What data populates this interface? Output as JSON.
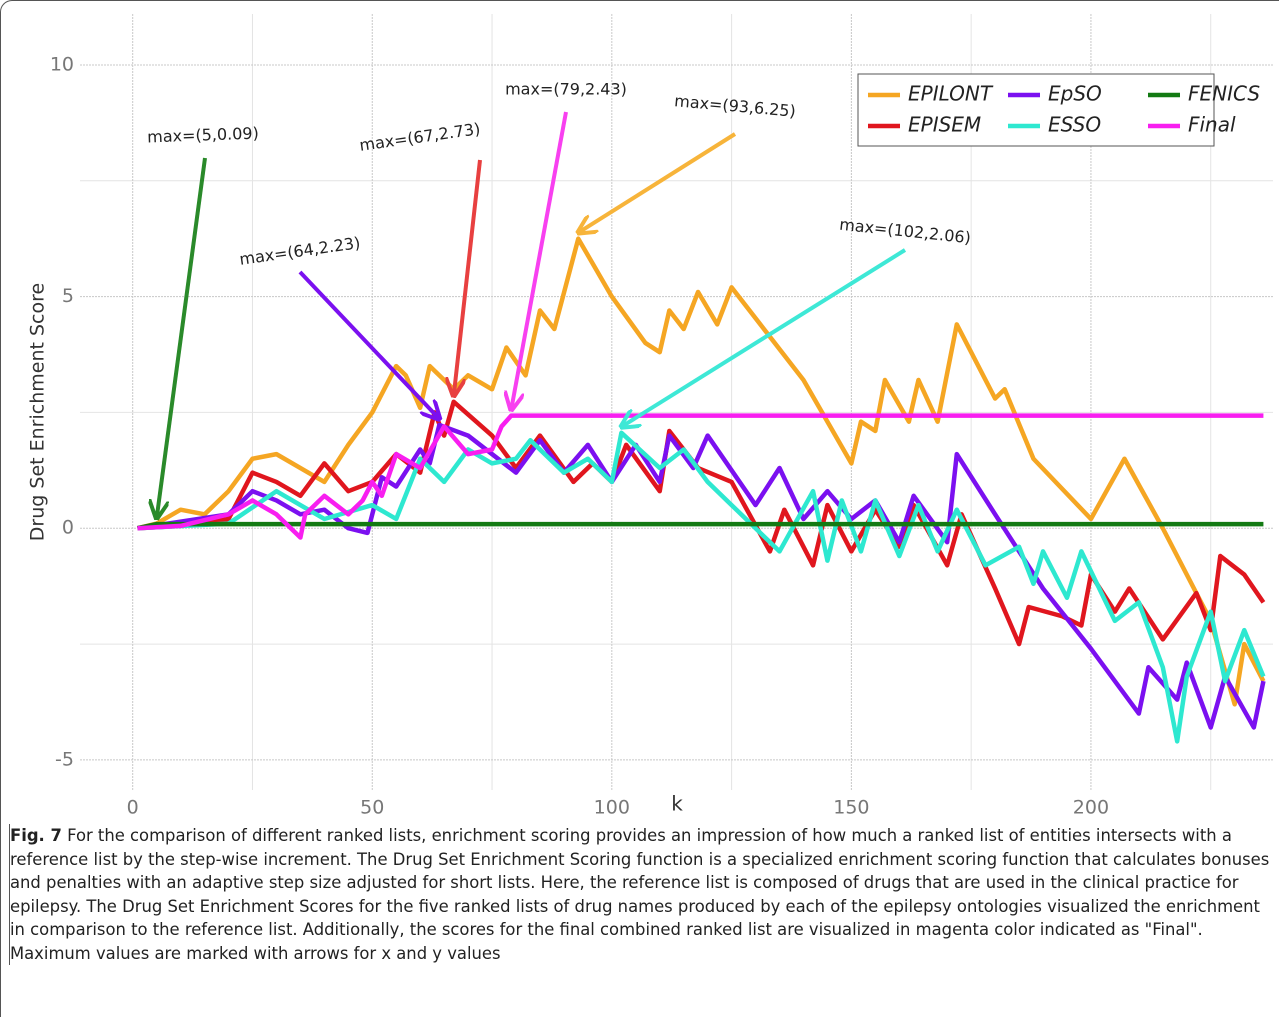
{
  "chart_data": {
    "type": "line",
    "x_label": "k",
    "y_label": "Drug Set Enrichment Score",
    "xlim": [
      -11,
      238
    ],
    "ylim": [
      -5.65,
      11.1
    ],
    "xticks": [
      0,
      50,
      100,
      150,
      200
    ],
    "yticks": [
      -5,
      0,
      5,
      10
    ],
    "x_minor_grid": [
      25,
      75,
      125,
      175,
      225
    ],
    "y_minor_grid": [
      -2.5,
      2.5,
      7.5
    ],
    "grid": true,
    "legend": "top-right",
    "series": [
      {
        "name": "EPILONT",
        "color": "#f5a623",
        "x": [
          1,
          5,
          10,
          15,
          20,
          25,
          30,
          40,
          45,
          50,
          55,
          57,
          60,
          62,
          67,
          70,
          75,
          78,
          82,
          85,
          88,
          93,
          100,
          107,
          110,
          112,
          115,
          118,
          122,
          125,
          140,
          150,
          152,
          155,
          157,
          162,
          164,
          168,
          172,
          180,
          182,
          188,
          200,
          207,
          215,
          225,
          230,
          232,
          236
        ],
        "values": [
          0,
          0.1,
          0.4,
          0.3,
          0.8,
          1.5,
          1.6,
          1.0,
          1.8,
          2.5,
          3.5,
          3.3,
          2.6,
          3.5,
          3.0,
          3.3,
          3.0,
          3.9,
          3.3,
          4.7,
          4.3,
          6.25,
          5.0,
          4.0,
          3.8,
          4.7,
          4.3,
          5.1,
          4.4,
          5.2,
          3.2,
          1.4,
          2.3,
          2.1,
          3.2,
          2.3,
          3.2,
          2.3,
          4.4,
          2.8,
          3.0,
          1.5,
          0.2,
          1.5,
          0.0,
          -2.0,
          -3.8,
          -2.5,
          -3.3
        ]
      },
      {
        "name": "EPISEM",
        "color": "#e0161e",
        "x": [
          1,
          10,
          20,
          25,
          30,
          35,
          40,
          45,
          50,
          55,
          60,
          63,
          65,
          67,
          75,
          80,
          85,
          92,
          96,
          100,
          103,
          110,
          112,
          118,
          125,
          133,
          136,
          142,
          145,
          150,
          155,
          160,
          163,
          170,
          173,
          180,
          185,
          187,
          194,
          198,
          200,
          205,
          208,
          215,
          222,
          225,
          227,
          232,
          236
        ],
        "values": [
          0,
          0.05,
          0.2,
          1.2,
          1.0,
          0.7,
          1.4,
          0.8,
          1.0,
          1.6,
          1.2,
          2.5,
          2.0,
          2.73,
          2.0,
          1.3,
          2.0,
          1.0,
          1.4,
          1.0,
          1.8,
          0.8,
          2.1,
          1.3,
          1.0,
          -0.5,
          0.4,
          -0.8,
          0.5,
          -0.5,
          0.4,
          -0.4,
          0.5,
          -0.8,
          0.3,
          -1.3,
          -2.5,
          -1.7,
          -1.9,
          -2.1,
          -1.0,
          -1.8,
          -1.3,
          -2.4,
          -1.4,
          -2.2,
          -0.6,
          -1.0,
          -1.6
        ]
      },
      {
        "name": "EpSO",
        "color": "#7b10f0",
        "x": [
          1,
          20,
          25,
          30,
          35,
          40,
          45,
          49,
          52,
          55,
          60,
          62,
          64,
          70,
          80,
          85,
          90,
          95,
          100,
          105,
          110,
          112,
          117,
          120,
          130,
          135,
          140,
          145,
          150,
          155,
          160,
          163,
          170,
          172,
          180,
          190,
          200,
          210,
          212,
          218,
          220,
          225,
          228,
          234,
          236
        ],
        "values": [
          0,
          0.3,
          0.8,
          0.6,
          0.3,
          0.4,
          0.0,
          -0.1,
          1.1,
          0.9,
          1.7,
          1.4,
          2.23,
          2.0,
          1.2,
          1.9,
          1.2,
          1.8,
          1.0,
          1.8,
          1.0,
          2.0,
          1.3,
          2.0,
          0.5,
          1.3,
          0.2,
          0.8,
          0.2,
          0.6,
          -0.3,
          0.7,
          -0.3,
          1.6,
          0.3,
          -1.3,
          -2.6,
          -4.0,
          -3.0,
          -3.7,
          -2.9,
          -4.3,
          -3.2,
          -4.3,
          -3.3
        ]
      },
      {
        "name": "ESSO",
        "color": "#2ee8d0",
        "x": [
          1,
          20,
          30,
          40,
          50,
          55,
          60,
          65,
          70,
          75,
          80,
          83,
          90,
          95,
          100,
          102,
          110,
          115,
          120,
          125,
          135,
          142,
          145,
          148,
          152,
          155,
          160,
          164,
          168,
          172,
          178,
          185,
          188,
          190,
          195,
          198,
          205,
          210,
          215,
          218,
          220,
          225,
          228,
          232,
          236
        ],
        "values": [
          0,
          0.1,
          0.8,
          0.2,
          0.5,
          0.2,
          1.5,
          1.0,
          1.7,
          1.4,
          1.5,
          1.9,
          1.2,
          1.5,
          1.0,
          2.06,
          1.3,
          1.7,
          1.0,
          0.5,
          -0.5,
          0.8,
          -0.7,
          0.6,
          -0.5,
          0.6,
          -0.6,
          0.5,
          -0.5,
          0.4,
          -0.8,
          -0.4,
          -1.2,
          -0.5,
          -1.5,
          -0.5,
          -2.0,
          -1.6,
          -3.0,
          -4.6,
          -3.2,
          -1.8,
          -3.3,
          -2.2,
          -3.2
        ]
      },
      {
        "name": "FENICS",
        "color": "#137a13",
        "x": [
          1,
          5,
          236
        ],
        "values": [
          0,
          0.09,
          0.09
        ]
      },
      {
        "name": "Final",
        "color": "#f81ef0",
        "x": [
          1,
          10,
          20,
          25,
          30,
          35,
          36,
          40,
          45,
          48,
          50,
          52,
          55,
          60,
          65,
          70,
          75,
          77,
          79,
          236
        ],
        "values": [
          0,
          0.05,
          0.3,
          0.6,
          0.3,
          -0.2,
          0.3,
          0.7,
          0.3,
          0.6,
          1.0,
          0.7,
          1.6,
          1.3,
          2.2,
          1.6,
          1.7,
          2.2,
          2.43,
          2.43
        ]
      }
    ],
    "annotations": [
      {
        "text": "max=(5,0.09)",
        "x": 5,
        "y": 0.09,
        "color": "#2a8a2a"
      },
      {
        "text": "max=(64,2.23)",
        "x": 64,
        "y": 2.23,
        "color": "#7b10f0"
      },
      {
        "text": "max=(67,2.73)",
        "x": 67,
        "y": 2.73,
        "color": "#e84040"
      },
      {
        "text": "max=(79,2.43)",
        "x": 79,
        "y": 2.43,
        "color": "#f840f0"
      },
      {
        "text": "max=(93,6.25)",
        "x": 93,
        "y": 6.25,
        "color": "#f7b43a"
      },
      {
        "text": "max=(102,2.06)",
        "x": 102,
        "y": 2.06,
        "color": "#3ee8d6"
      }
    ]
  },
  "caption": {
    "label": "Fig. 7",
    "text": "For the comparison of different ranked lists, enrichment scoring provides an impression of how much a ranked list of entities intersects with a reference list by the step-wise increment. The Drug Set Enrichment Scoring function is a specialized enrichment scoring function that calculates bonuses and penalties with an adaptive step size adjusted for short lists. Here, the reference list is composed of drugs that are used in the clinical practice for epilepsy. The Drug Set Enrichment Scores for the five ranked lists of drug names produced by each of the epilepsy ontologies visualized the enrichment in comparison to the reference list. Additionally, the scores for the final combined ranked list are visualized in magenta color indicated as \"Final\". Maximum values are marked with arrows for x and y values"
  }
}
